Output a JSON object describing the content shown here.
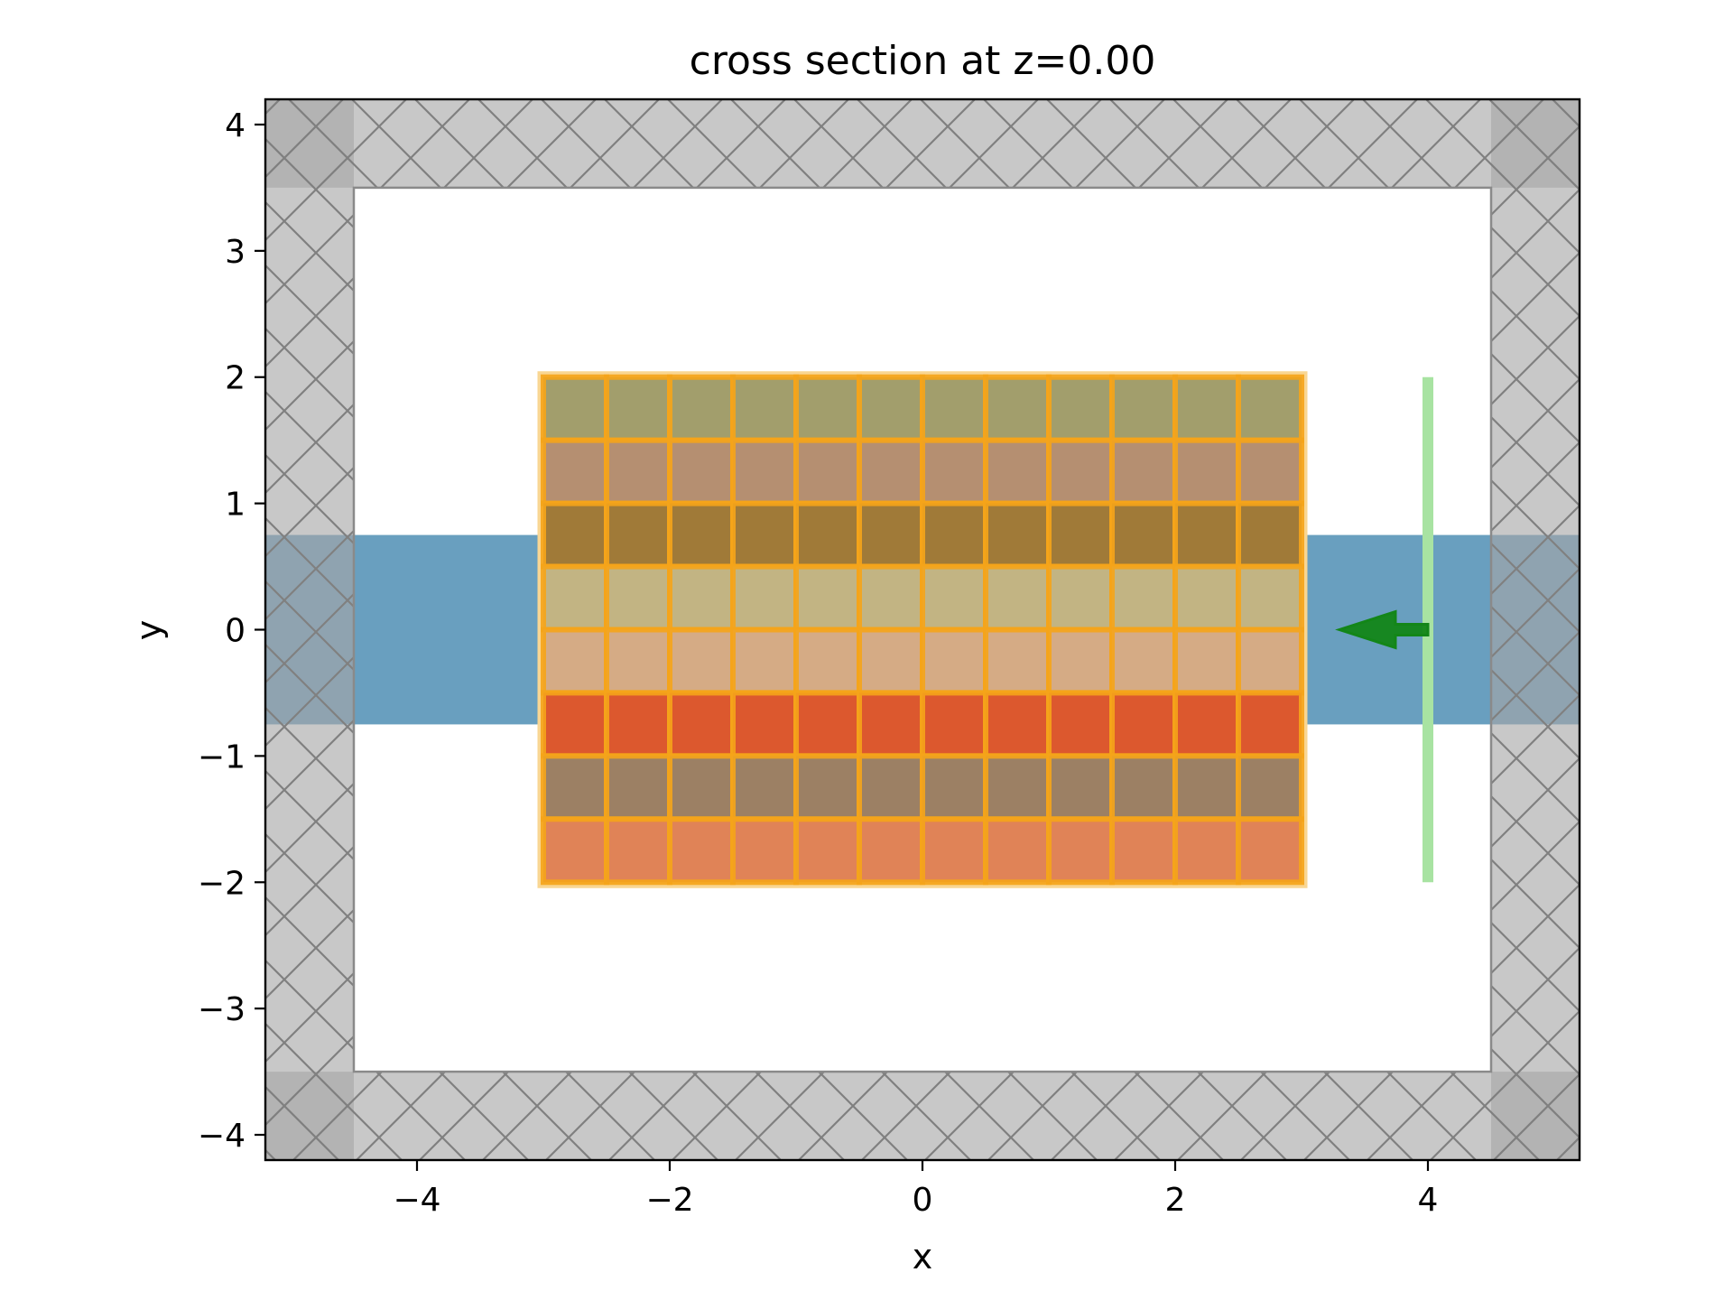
{
  "chart_data": {
    "type": "other",
    "title": "cross section at z=0.00",
    "xlabel": "x",
    "ylabel": "y",
    "xlim": [
      -5.2,
      5.2
    ],
    "ylim": [
      -4.2,
      4.2
    ],
    "xticks": [
      -4,
      -2,
      0,
      2,
      4
    ],
    "yticks": [
      -4,
      -3,
      -2,
      -1,
      0,
      1,
      2,
      3,
      4
    ],
    "xtick_labels": [
      "−4",
      "−2",
      "0",
      "2",
      "4"
    ],
    "ytick_labels": [
      "−4",
      "−3",
      "−2",
      "−1",
      "0",
      "1",
      "2",
      "3",
      "4"
    ],
    "grid": false,
    "legend": "none",
    "pml_regions": {
      "color": "#a6a6a6",
      "corner_color": "#8c8c8c",
      "hatch": "diagonal-cross",
      "boxes": [
        {
          "name": "pml-top",
          "x": [
            -5.2,
            5.2
          ],
          "y": [
            3.5,
            4.2
          ]
        },
        {
          "name": "pml-bottom",
          "x": [
            -5.2,
            5.2
          ],
          "y": [
            -4.2,
            -3.5
          ]
        },
        {
          "name": "pml-left",
          "x": [
            -5.2,
            -4.5
          ],
          "y": [
            -4.2,
            4.2
          ]
        },
        {
          "name": "pml-right",
          "x": [
            4.5,
            5.2
          ],
          "y": [
            -4.2,
            4.2
          ]
        }
      ]
    },
    "waveguide": {
      "x": [
        -5.2,
        5.2
      ],
      "y": [
        -0.75,
        0.75
      ],
      "color": "#699fbf"
    },
    "grating": {
      "x": [
        -3,
        3
      ],
      "y": [
        -2,
        2
      ],
      "columns": 12,
      "cell_outline": "#f5a41a",
      "border_color": "#f9d692",
      "row_colors": [
        "#a29e6c",
        "#b58f71",
        "#a07a38",
        "#c2b483",
        "#d5ab85",
        "#dc582e",
        "#9c8064",
        "#e08357"
      ]
    },
    "source": {
      "x": 4,
      "y": [
        -2,
        2
      ],
      "color": "#a8e3a2",
      "direction": "-x",
      "arrow_color": "#138618",
      "arrow_from": [
        4,
        0
      ],
      "arrow_to": [
        3.3,
        0
      ]
    }
  }
}
